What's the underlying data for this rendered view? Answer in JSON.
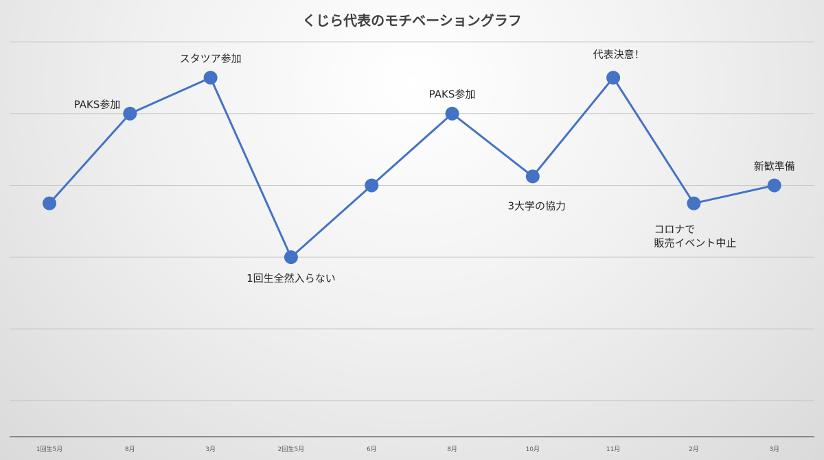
{
  "chart_data": {
    "type": "line",
    "title": "くじら代表のモチベーショングラフ",
    "xlabel": "",
    "ylabel": "",
    "categories": [
      "1回生5月",
      "8月",
      "3月",
      "2回生5月",
      "6月",
      "8月",
      "10月",
      "11月",
      "2月",
      "3月"
    ],
    "values": [
      6.5,
      9,
      10,
      5,
      7,
      9,
      7.25,
      10,
      6.5,
      7
    ],
    "ylim": [
      0,
      11
    ],
    "grid": true,
    "legend": "none",
    "annotations": [
      {
        "index": 1,
        "text": "PAKS参加"
      },
      {
        "index": 2,
        "text": "スタツア参加"
      },
      {
        "index": 3,
        "text": "1回生全然入らない"
      },
      {
        "index": 5,
        "text": "PAKS参加"
      },
      {
        "index": 6,
        "text": "3大学の協力"
      },
      {
        "index": 7,
        "text": "代表決意！"
      },
      {
        "index": 8,
        "text": "コロナで\n販売イベント中止"
      },
      {
        "index": 9,
        "text": "新歓準備"
      }
    ],
    "colors": {
      "line": "#4472C4",
      "grid": "#c8c8c8"
    }
  }
}
